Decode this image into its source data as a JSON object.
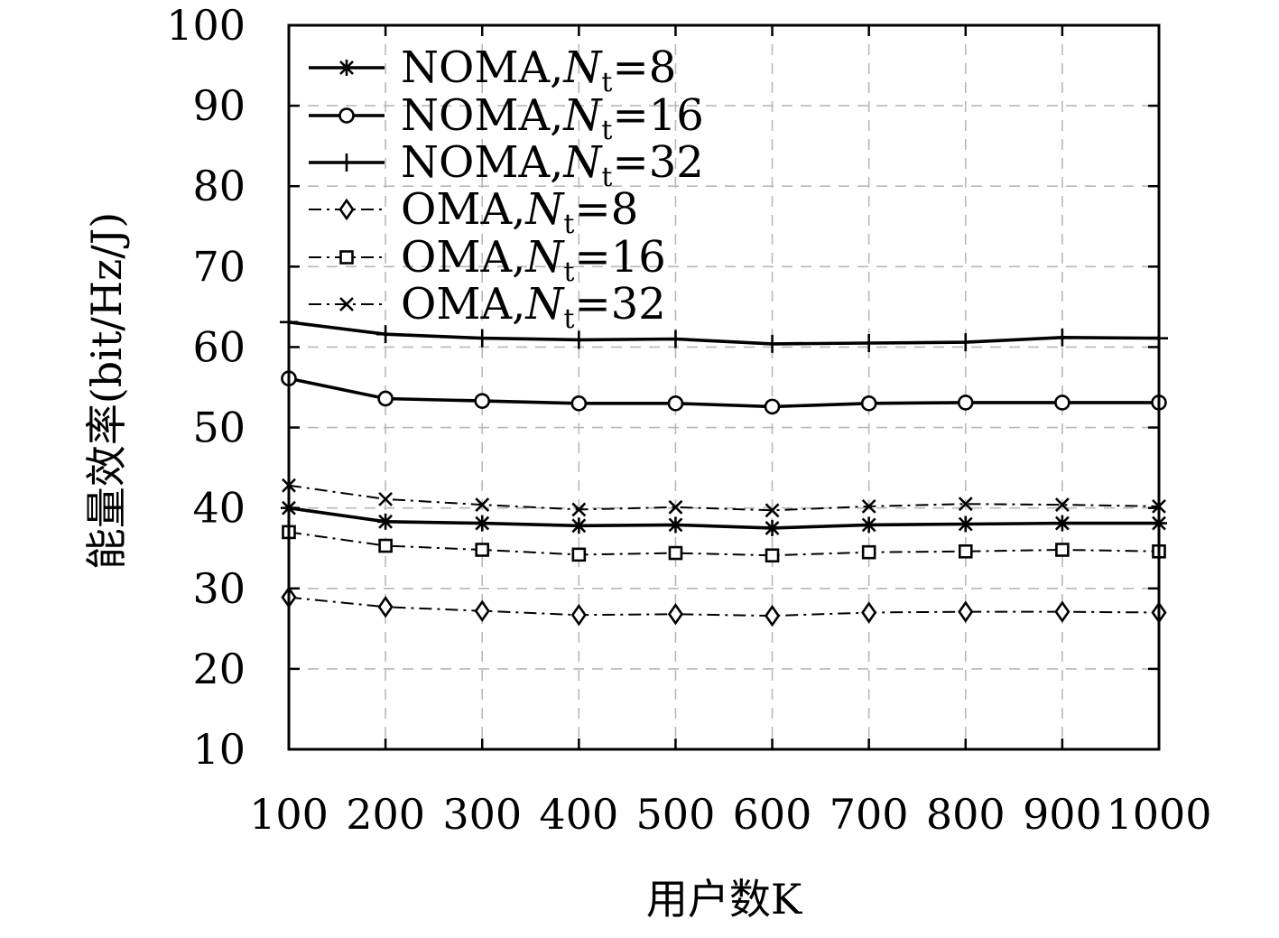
{
  "chart_data": {
    "type": "line",
    "title": "",
    "xlabel": "用户数K",
    "ylabel": "能量效率(bit/Hz/J)",
    "xlim": [
      100,
      1000
    ],
    "ylim": [
      10,
      100
    ],
    "xticks": [
      "100",
      "200",
      "300",
      "400",
      "500",
      "600",
      "700",
      "800",
      "900",
      "1000"
    ],
    "yticks": [
      "10",
      "20",
      "30",
      "40",
      "50",
      "60",
      "70",
      "80",
      "90",
      "100"
    ],
    "grid": true,
    "legend_position": "top-left",
    "x": [
      100,
      200,
      300,
      400,
      500,
      600,
      700,
      800,
      900,
      1000
    ],
    "series": [
      {
        "name": "NOMA,Nt=8",
        "name_main": "NOMA,",
        "name_var": "N",
        "name_sub": "t",
        "name_tail": "=8",
        "style": "solid",
        "marker": "asterisk",
        "values": [
          40.0,
          38.3,
          38.1,
          37.8,
          37.9,
          37.5,
          37.9,
          38.0,
          38.1,
          38.1
        ]
      },
      {
        "name": "NOMA,Nt=16",
        "name_main": "NOMA,",
        "name_var": "N",
        "name_sub": "t",
        "name_tail": "=16",
        "style": "solid",
        "marker": "circle",
        "values": [
          56.1,
          53.6,
          53.3,
          53.0,
          53.0,
          52.6,
          53.0,
          53.1,
          53.1,
          53.1
        ]
      },
      {
        "name": "NOMA,Nt=32",
        "name_main": "NOMA,",
        "name_var": "N",
        "name_sub": "t",
        "name_tail": "=32",
        "style": "solid",
        "marker": "plus",
        "values": [
          63.1,
          61.6,
          61.1,
          60.9,
          61.0,
          60.4,
          60.5,
          60.6,
          61.2,
          61.1
        ]
      },
      {
        "name": "OMA,Nt=8",
        "name_main": "OMA,",
        "name_var": "N",
        "name_sub": "t",
        "name_tail": "=8",
        "style": "dashdot",
        "marker": "diamond",
        "values": [
          28.9,
          27.7,
          27.2,
          26.7,
          26.8,
          26.6,
          27.0,
          27.1,
          27.1,
          27.0
        ]
      },
      {
        "name": "OMA,Nt=16",
        "name_main": "OMA,",
        "name_var": "N",
        "name_sub": "t",
        "name_tail": "=16",
        "style": "dashdot",
        "marker": "square",
        "values": [
          37.0,
          35.3,
          34.8,
          34.2,
          34.4,
          34.1,
          34.5,
          34.6,
          34.8,
          34.6
        ]
      },
      {
        "name": "OMA,Nt=32",
        "name_main": "OMA,",
        "name_var": "N",
        "name_sub": "t",
        "name_tail": "=32",
        "style": "dashdot",
        "marker": "x",
        "values": [
          42.8,
          41.1,
          40.4,
          39.8,
          40.1,
          39.7,
          40.2,
          40.5,
          40.4,
          40.2
        ]
      }
    ]
  }
}
